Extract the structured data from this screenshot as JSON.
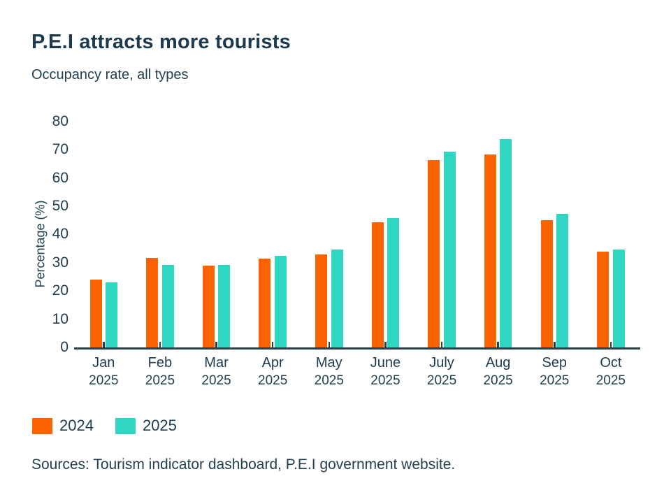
{
  "header": {
    "title": "P.E.I attracts more tourists",
    "subtitle": "Occupancy rate, all types"
  },
  "chart_data": {
    "type": "bar",
    "title": "P.E.I attracts more tourists",
    "subtitle": "Occupancy rate, all types",
    "xlabel": "",
    "ylabel": "Percentage (%)",
    "ylim": [
      0,
      80
    ],
    "yticks": [
      0,
      10,
      20,
      30,
      40,
      50,
      60,
      70,
      80
    ],
    "grid": false,
    "legend_position": "bottom-left",
    "categories": [
      "Jan",
      "Feb",
      "Mar",
      "Apr",
      "May",
      "June",
      "July",
      "Aug",
      "Sep",
      "Oct"
    ],
    "category_year": "2025",
    "series": [
      {
        "name": "2024",
        "color": "#FA6400",
        "values": [
          24.0,
          31.6,
          28.9,
          31.4,
          33.0,
          44.4,
          66.4,
          68.3,
          45.0,
          33.8
        ]
      },
      {
        "name": "2025",
        "color": "#2FD7C3",
        "values": [
          23.0,
          29.3,
          29.3,
          32.4,
          34.7,
          45.9,
          69.4,
          73.8,
          47.4,
          34.6
        ]
      }
    ]
  },
  "colors": {
    "ink": "#1d3b4f",
    "axis": "#2a3f4c",
    "series_2024": "#FA6400",
    "series_2025": "#2FD7C3"
  },
  "footer": {
    "sources": "Sources: Tourism indicator dashboard, P.E.I government website."
  }
}
